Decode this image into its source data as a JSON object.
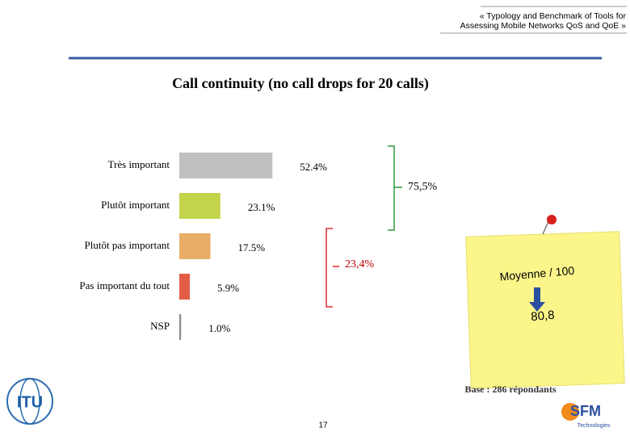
{
  "header": {
    "lines": [
      "« Typology and Benchmark of Tools for",
      "Assessing Mobile Networks QoS and QoE »"
    ]
  },
  "chart_data": {
    "type": "hbar",
    "title": "Call continuity (no call drops for 20 calls)",
    "categories": [
      "Très important",
      "Plutôt important",
      "Plutôt pas important",
      "Pas important du tout",
      "NSP"
    ],
    "values": [
      52.4,
      23.1,
      17.5,
      5.9,
      1.0
    ],
    "value_labels": [
      "52.4%",
      "23.1%",
      "17.5%",
      "5.9%",
      "1.0%"
    ],
    "colors": [
      "#c0c0c0",
      "#c3d44a",
      "#e9ad66",
      "#e35c45",
      "#8a8a8a"
    ],
    "annotations": [
      "75,5%",
      "23,4%"
    ]
  },
  "note": {
    "label": "Moyenne / 100",
    "value": "80,8"
  },
  "footer": {
    "base": "Base : 286 répondants",
    "page": "17",
    "itu": "ITU",
    "sfm": "SFM",
    "sfm_sub": "Technologies"
  }
}
